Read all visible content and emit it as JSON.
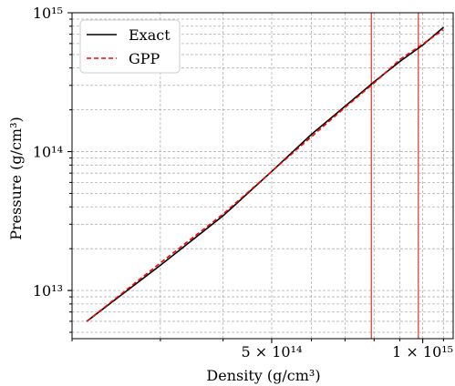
{
  "chart_data": {
    "type": "line",
    "xlabel": "Density (g/cm³)",
    "ylabel": "Pressure (g/cm³)",
    "x_scale": "log",
    "y_scale": "log",
    "grid": true,
    "legend_position": "top-left",
    "xlim": [
      200000000000000.0,
      1150000000000000.0
    ],
    "ylim": [
      4500000000000.0,
      1000000000000000.0
    ],
    "x_ticks": [
      {
        "value": 500000000000000.0,
        "label": "5 × 10¹⁴"
      },
      {
        "value": 1000000000000000.0,
        "label": "1 × 10¹⁵"
      }
    ],
    "y_ticks": [
      {
        "value": 10000000000000.0,
        "label": "10¹³"
      },
      {
        "value": 100000000000000.0,
        "label": "10¹⁴"
      },
      {
        "value": 1000000000000000.0,
        "label": "10¹⁵"
      }
    ],
    "vlines": [
      {
        "x": 790000000000000.0,
        "color": "#e8423a"
      },
      {
        "x": 980000000000000.0,
        "color": "#e8423a"
      }
    ],
    "series": [
      {
        "name": "Exact",
        "color": "#000000",
        "style": "solid",
        "x": [
          214000000000000.0,
          300000000000000.0,
          400000000000000.0,
          500000000000000.0,
          600000000000000.0,
          700000000000000.0,
          800000000000000.0,
          900000000000000.0,
          1000000000000000.0,
          1100000000000000.0
        ],
        "y": [
          6000000000000.0,
          15200000000000.0,
          34500000000000.0,
          72000000000000.0,
          133000000000000.0,
          212000000000000.0,
          318000000000000.0,
          445000000000000.0,
          585000000000000.0,
          785000000000000.0
        ]
      },
      {
        "name": "GPP",
        "color": "#ff0000",
        "style": "dashed",
        "x": [
          214000000000000.0,
          300000000000000.0,
          400000000000000.0,
          500000000000000.0,
          600000000000000.0,
          700000000000000.0,
          800000000000000.0,
          900000000000000.0,
          1000000000000000.0,
          1100000000000000.0
        ],
        "y": [
          6000000000000.0,
          15800000000000.0,
          35500000000000.0,
          72000000000000.0,
          128000000000000.0,
          208000000000000.0,
          312000000000000.0,
          460000000000000.0,
          595000000000000.0,
          755000000000000.0
        ]
      }
    ]
  }
}
